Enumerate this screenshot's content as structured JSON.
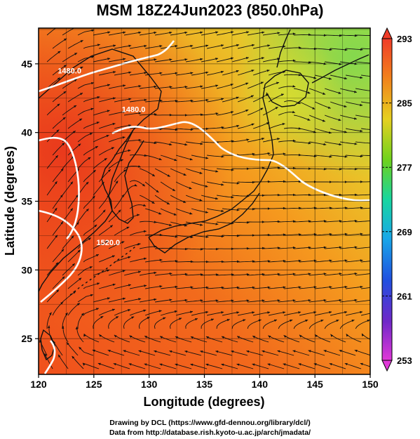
{
  "title": "MSM 18Z24Jun2023 (850.0hPa)",
  "map": {
    "xaxis": {
      "label": "Longitude (degrees)",
      "range": [
        120,
        150
      ],
      "ticks": [
        "120",
        "125",
        "130",
        "135",
        "140",
        "145",
        "150"
      ],
      "tick_values": [
        120,
        125,
        130,
        135,
        140,
        145,
        150
      ]
    },
    "yaxis": {
      "label": "Latitude  (degrees)",
      "range": [
        22.4,
        47.6
      ],
      "ticks": [
        "25",
        "30",
        "35",
        "40",
        "45"
      ],
      "tick_values": [
        25,
        30,
        35,
        40,
        45
      ]
    },
    "grid": true,
    "contour_labels": [
      {
        "text": "1480.0",
        "lon": 122.8,
        "lat": 44.3
      },
      {
        "text": "1480.0",
        "lon": 128.6,
        "lat": 41.5
      },
      {
        "text": "1520.0",
        "lon": 126.3,
        "lat": 31.8
      }
    ]
  },
  "colorbar": {
    "ticks": [
      "293",
      "285",
      "277",
      "269",
      "261",
      "253"
    ],
    "tick_values": [
      293,
      285,
      277,
      269,
      261,
      253
    ],
    "range": [
      253,
      293
    ]
  },
  "credits": {
    "line1": "Drawing by DCL (https://www.gfd-dennou.org/library/dcl/)",
    "line2": "Data from http://database.rish.kyoto-u.ac.jp/arch/jmadata/"
  }
}
